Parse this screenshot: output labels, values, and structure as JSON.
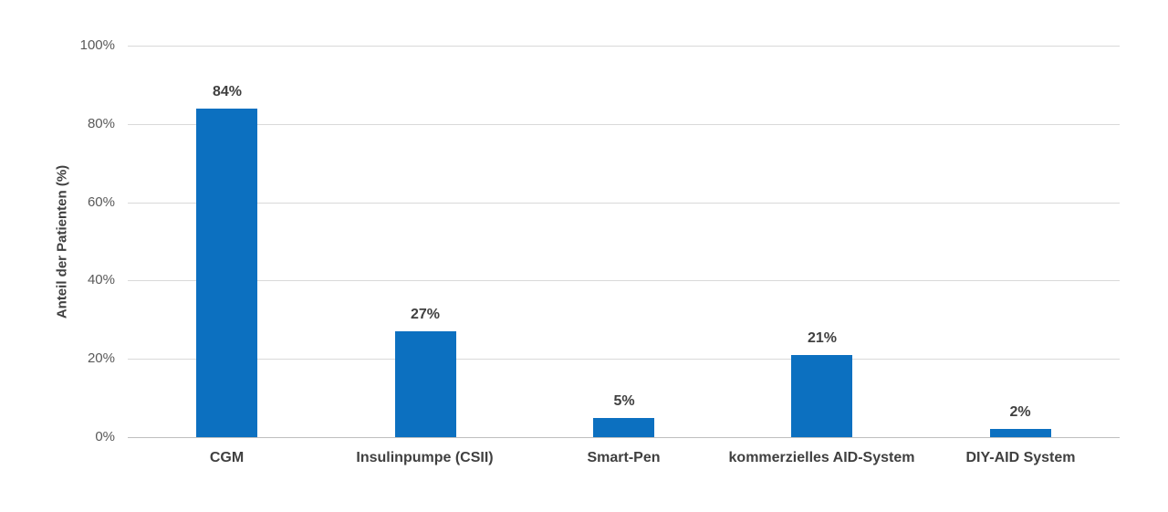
{
  "chart_data": {
    "type": "bar",
    "categories": [
      "CGM",
      "Insulinpumpe (CSII)",
      "Smart-Pen",
      "kommerzielles AID-System",
      "DIY-AID System"
    ],
    "values": [
      84,
      27,
      5,
      21,
      2
    ],
    "value_labels": [
      "84%",
      "27%",
      "5%",
      "21%",
      "2%"
    ],
    "title": "",
    "xlabel": "",
    "ylabel": "Anteil der Patienten (%)",
    "ylim": [
      0,
      100
    ],
    "yticks": [
      0,
      20,
      40,
      60,
      80,
      100
    ],
    "ytick_labels": [
      "0%",
      "20%",
      "40%",
      "60%",
      "80%",
      "100%"
    ],
    "grid": true,
    "legend": false,
    "colors": {
      "bar": "#0C70C0",
      "gridline": "#D9D9D9",
      "axis_line": "#BFBFBF",
      "label_text": "#404040",
      "tick_text": "#595959",
      "background": "#FFFFFF"
    }
  }
}
